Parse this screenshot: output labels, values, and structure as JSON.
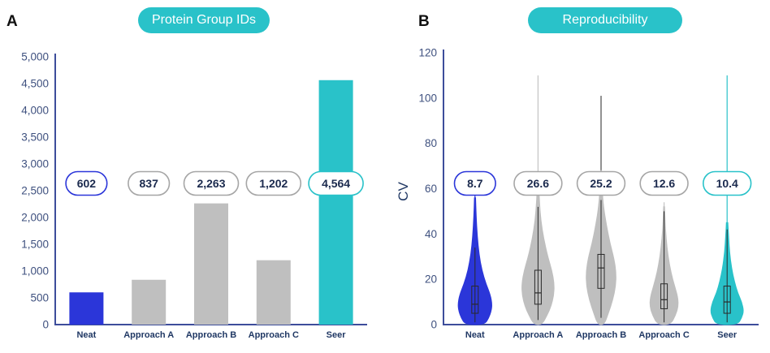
{
  "colors": {
    "teal": "#29c2c9",
    "blue": "#2b36d9",
    "gray": "#bfbfbf",
    "axis": "#3d4d9b",
    "tick_text": "#3f517f",
    "pill_gray_border": "#a6a6a6",
    "pill_text": "#1b2a4e",
    "box_stroke": "#2a2a2a"
  },
  "panels": [
    {
      "letter": "A",
      "title": "Protein Group IDs"
    },
    {
      "letter": "B",
      "title": "Reproducibility"
    }
  ],
  "chart_data": [
    {
      "type": "bar",
      "title": "Protein Group IDs",
      "categories": [
        "Neat",
        "Approach A",
        "Approach B",
        "Approach C",
        "Seer"
      ],
      "values": [
        602,
        837,
        2263,
        1202,
        4564
      ],
      "value_labels": [
        "602",
        "837",
        "2,263",
        "1,202",
        "4,564"
      ],
      "bar_colors": [
        "#2b36d9",
        "#bfbfbf",
        "#bfbfbf",
        "#bfbfbf",
        "#29c2c9"
      ],
      "pill_borders": [
        "#2b36d9",
        "#a6a6a6",
        "#a6a6a6",
        "#a6a6a6",
        "#29c2c9"
      ],
      "xlabel": "",
      "ylabel": "",
      "ylim": [
        0,
        5000
      ],
      "ytick_values": [
        0,
        500,
        1000,
        1500,
        2000,
        2500,
        3000,
        3500,
        4000,
        4500,
        5000
      ],
      "ytick_labels": [
        "0",
        "500",
        "1,000",
        "1,500",
        "2,000",
        "2,500",
        "3,000",
        "3,500",
        "4,000",
        "4,500",
        "5,000"
      ],
      "grid": false,
      "legend": false
    },
    {
      "type": "violin",
      "title": "Reproducibility",
      "xlabel": "",
      "ylabel": "CV",
      "ylim": [
        0,
        120
      ],
      "ytick_values": [
        0,
        20,
        40,
        60,
        80,
        100,
        120
      ],
      "ytick_labels": [
        "0",
        "20",
        "40",
        "60",
        "80",
        "100",
        "120"
      ],
      "grid": false,
      "legend": false,
      "categories": [
        "Neat",
        "Approach A",
        "Approach B",
        "Approach C",
        "Seer"
      ],
      "value_labels": [
        "8.7",
        "26.6",
        "25.2",
        "12.6",
        "10.4"
      ],
      "series": [
        {
          "name": "Neat",
          "label": "8.7",
          "color": "#2b36d9",
          "tail_color": "#2b36d9",
          "tail_top": 62,
          "pill_border": "#2b36d9",
          "profile": [
            [
              0,
              12
            ],
            [
              3,
              17
            ],
            [
              6,
              20
            ],
            [
              9,
              21
            ],
            [
              13,
              19
            ],
            [
              18,
              13.5
            ],
            [
              24,
              8.5
            ],
            [
              31,
              5
            ],
            [
              39,
              2.8
            ],
            [
              48,
              1.4
            ],
            [
              56,
              0.7
            ]
          ],
          "box": {
            "q1": 5,
            "median": 9,
            "q3": 17,
            "lo": 1,
            "hi": 34
          }
        },
        {
          "name": "Approach A",
          "label": "26.6",
          "color": "#bfbfbf",
          "tail_color": "#c4c4c4",
          "tail_top": 110,
          "pill_border": "#a6a6a6",
          "profile": [
            [
              0,
              5
            ],
            [
              4,
              11
            ],
            [
              8,
              16
            ],
            [
              13,
              19.5
            ],
            [
              18,
              20
            ],
            [
              24,
              17
            ],
            [
              30,
              12
            ],
            [
              38,
              7
            ],
            [
              46,
              3.5
            ],
            [
              54,
              1.8
            ],
            [
              62,
              0.8
            ]
          ],
          "box": {
            "q1": 9,
            "median": 14,
            "q3": 24,
            "lo": 2,
            "hi": 52
          }
        },
        {
          "name": "Approach B",
          "label": "25.2",
          "color": "#bfbfbf",
          "tail_color": "#4a4a4a",
          "tail_top": 101,
          "pill_border": "#a6a6a6",
          "profile": [
            [
              0,
              4
            ],
            [
              5,
              9
            ],
            [
              11,
              14.5
            ],
            [
              17,
              18
            ],
            [
              23,
              18.5
            ],
            [
              29,
              16
            ],
            [
              36,
              11
            ],
            [
              44,
              6.5
            ],
            [
              52,
              3
            ],
            [
              60,
              1.3
            ],
            [
              68,
              0.6
            ]
          ],
          "box": {
            "q1": 16,
            "median": 25,
            "q3": 31,
            "lo": 3,
            "hi": 55
          }
        },
        {
          "name": "Approach C",
          "label": "12.6",
          "color": "#bfbfbf",
          "tail_color": "#c4c4c4",
          "tail_top": 54,
          "pill_border": "#a6a6a6",
          "profile": [
            [
              0,
              8
            ],
            [
              4,
              14
            ],
            [
              8,
              17.5
            ],
            [
              12,
              17
            ],
            [
              17,
              13
            ],
            [
              23,
              8.5
            ],
            [
              30,
              5
            ],
            [
              38,
              2.5
            ],
            [
              46,
              1.2
            ],
            [
              52,
              0.6
            ]
          ],
          "box": {
            "q1": 7,
            "median": 11,
            "q3": 18,
            "lo": 1,
            "hi": 50
          }
        },
        {
          "name": "Seer",
          "label": "10.4",
          "color": "#29c2c9",
          "tail_color": "#29c2c9",
          "tail_top": 110,
          "pill_border": "#29c2c9",
          "profile": [
            [
              0,
              13
            ],
            [
              3,
              18
            ],
            [
              6,
              20.5
            ],
            [
              10,
              18
            ],
            [
              14,
              13
            ],
            [
              19,
              9
            ],
            [
              25,
              5.5
            ],
            [
              32,
              3
            ],
            [
              39,
              1.8
            ],
            [
              45,
              0.9
            ]
          ],
          "box": {
            "q1": 5,
            "median": 10,
            "q3": 17,
            "lo": 1,
            "hi": 42
          }
        }
      ]
    }
  ]
}
